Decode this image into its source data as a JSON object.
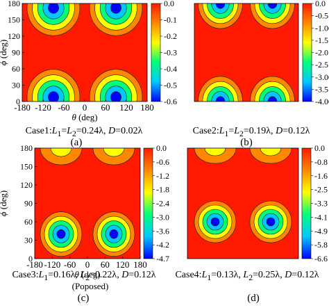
{
  "colors": {
    "colormap": [
      "#0000ff",
      "#00c8ff",
      "#00ff7a",
      "#ffff00",
      "#ff8800",
      "#ff1a00"
    ],
    "background": "#ffffff"
  },
  "chart_data": [
    {
      "type": "heatmap",
      "panel_label": "(a)",
      "case_parts": [
        "Case1:",
        "L",
        "1",
        "=",
        "L",
        "2",
        "=0.24λ, ",
        "D",
        "=0.02λ"
      ],
      "note": "",
      "xlabel_symbol": "θ",
      "xlabel_unit": " (deg)",
      "ylabel_symbol": "ϕ",
      "ylabel_unit": " (deg)",
      "x_ticks": [
        "-180",
        "-120",
        "-60",
        "0",
        "60",
        "120",
        "180"
      ],
      "y_ticks": [
        "0",
        "30",
        "60",
        "90",
        "120",
        "150",
        "180"
      ],
      "xlim": [
        -180,
        180
      ],
      "ylim": [
        0,
        180
      ],
      "colorbar_ticks": [
        "0.0",
        "-0.1",
        "-0.2",
        "-0.3",
        "-0.4",
        "-0.5",
        "-0.6"
      ],
      "colorbar_range": [
        -0.6,
        0.0
      ],
      "minima": [
        {
          "theta": -90,
          "phi": 8,
          "value": -0.6,
          "sx": 38,
          "sy": 40
        },
        {
          "theta": 90,
          "phi": 8,
          "value": -0.6,
          "sx": 38,
          "sy": 40
        },
        {
          "theta": -90,
          "phi": 172,
          "value": -0.6,
          "sx": 38,
          "sy": 40
        },
        {
          "theta": 90,
          "phi": 172,
          "value": -0.6,
          "sx": 38,
          "sy": 40
        }
      ]
    },
    {
      "type": "heatmap",
      "panel_label": "(b)",
      "case_parts": [
        "Case2:",
        "L",
        "1",
        "=",
        "L",
        "2",
        "=0.19λ, ",
        "D",
        "=0.12λ"
      ],
      "note": "",
      "xlabel_symbol": "",
      "xlabel_unit": "",
      "ylabel_symbol": "",
      "ylabel_unit": "",
      "x_ticks": [],
      "y_ticks": [],
      "xlim": [
        -180,
        180
      ],
      "ylim": [
        0,
        180
      ],
      "colorbar_ticks": [
        "0.0",
        "-0.5",
        "-1.00",
        "-1.5",
        "-2.0",
        "-2.5",
        "-3.00",
        "-3.5",
        "-4.00"
      ],
      "colorbar_range": [
        -4.0,
        0.0
      ],
      "minima": [
        {
          "theta": -90,
          "phi": 0,
          "value": -4.0,
          "sx": 32,
          "sy": 36
        },
        {
          "theta": 90,
          "phi": 0,
          "value": -4.0,
          "sx": 32,
          "sy": 36
        },
        {
          "theta": -90,
          "phi": 180,
          "value": -4.0,
          "sx": 32,
          "sy": 36
        },
        {
          "theta": 90,
          "phi": 180,
          "value": -4.0,
          "sx": 32,
          "sy": 36
        }
      ]
    },
    {
      "type": "heatmap",
      "panel_label": "(c)",
      "case_parts": [
        "Case3:",
        "L",
        "1",
        "=0.16λ, ",
        "L",
        "2",
        "=0.22λ, ",
        "D",
        "=0.12λ"
      ],
      "note": "(Poposed)",
      "xlabel_symbol": "θ",
      "xlabel_unit": " (deg)",
      "ylabel_symbol": "ϕ",
      "ylabel_unit": " (deg)",
      "x_ticks": [
        "-180",
        "-120",
        "-60",
        "0",
        "60",
        "120",
        "180"
      ],
      "y_ticks": [
        "0",
        "30",
        "60",
        "90",
        "120",
        "150",
        "180"
      ],
      "xlim": [
        -180,
        180
      ],
      "ylim": [
        0,
        180
      ],
      "colorbar_ticks": [
        "0.0",
        "-0.6",
        "-1.2",
        "-1.8",
        "-2.4",
        "-3.0",
        "-3.6",
        "-4.2",
        "-4.7"
      ],
      "colorbar_range": [
        -4.7,
        0.0
      ],
      "minima": [
        {
          "theta": -90,
          "phi": 40,
          "value": -4.7,
          "sx": 30,
          "sy": 32
        },
        {
          "theta": 90,
          "phi": 40,
          "value": -4.7,
          "sx": 30,
          "sy": 32
        },
        {
          "theta": -90,
          "phi": 180,
          "value": -2.2,
          "sx": 30,
          "sy": 24
        },
        {
          "theta": 90,
          "phi": 180,
          "value": -2.2,
          "sx": 30,
          "sy": 24
        }
      ]
    },
    {
      "type": "heatmap",
      "panel_label": "(d)",
      "case_parts": [
        "Case4:",
        "L",
        "1",
        "=0.13λ, ",
        "L",
        "2",
        "=0.25λ, ",
        "D",
        "=0.12λ"
      ],
      "note": "",
      "xlabel_symbol": "",
      "xlabel_unit": "",
      "ylabel_symbol": "",
      "ylabel_unit": "",
      "x_ticks": [],
      "y_ticks": [],
      "xlim": [
        -180,
        180
      ],
      "ylim": [
        0,
        180
      ],
      "colorbar_ticks": [
        "0.0",
        "-0.8",
        "-1.6",
        "-2.5",
        "-3.3",
        "-4.1",
        "-4.9",
        "-5.8",
        "-6.6"
      ],
      "colorbar_range": [
        -6.6,
        0.0
      ],
      "minima": [
        {
          "theta": -90,
          "phi": 60,
          "value": -6.6,
          "sx": 30,
          "sy": 30
        },
        {
          "theta": 90,
          "phi": 60,
          "value": -6.6,
          "sx": 30,
          "sy": 30
        },
        {
          "theta": -90,
          "phi": 180,
          "value": -1.8,
          "sx": 30,
          "sy": 22
        },
        {
          "theta": 90,
          "phi": 180,
          "value": -1.8,
          "sx": 30,
          "sy": 22
        }
      ]
    }
  ]
}
